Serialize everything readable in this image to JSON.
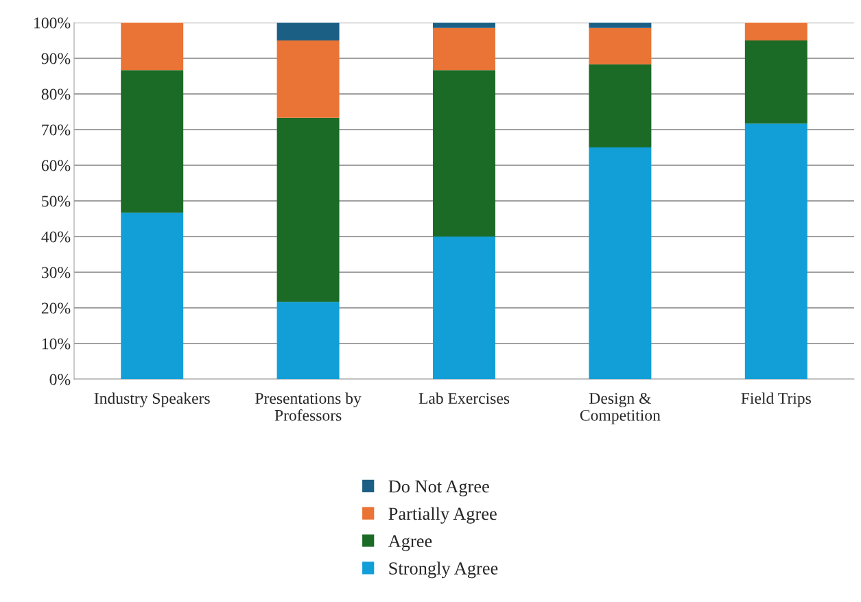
{
  "chart_data": {
    "type": "bar",
    "stacked": true,
    "categories": [
      "Industry Speakers",
      "Presentations by\nProfessors",
      "Lab Exercises",
      "Design &\nCompetition",
      "Field Trips"
    ],
    "series": [
      {
        "name": "Strongly Agree",
        "color": "#129fd8",
        "values": [
          46.7,
          21.7,
          40,
          65,
          71.7
        ]
      },
      {
        "name": "Agree",
        "color": "#1b6b27",
        "values": [
          40,
          51.6,
          46.7,
          23.3,
          23.3
        ]
      },
      {
        "name": "Partially Agree",
        "color": "#ea7435",
        "values": [
          13.3,
          21.7,
          11.8,
          10.2,
          5
        ]
      },
      {
        "name": "Do Not Agree",
        "color": "#1b5f85",
        "values": [
          null,
          5,
          1.5,
          1.5,
          null
        ]
      }
    ],
    "ylim": [
      0,
      100
    ],
    "yticks": [
      {
        "value": 0,
        "label": "0%"
      },
      {
        "value": 10,
        "label": "10%"
      },
      {
        "value": 20,
        "label": "20%"
      },
      {
        "value": 30,
        "label": "30%"
      },
      {
        "value": 40,
        "label": "40%"
      },
      {
        "value": 50,
        "label": "50%"
      },
      {
        "value": 60,
        "label": "60%"
      },
      {
        "value": 70,
        "label": "70%"
      },
      {
        "value": 80,
        "label": "80%"
      },
      {
        "value": 90,
        "label": "90%"
      },
      {
        "value": 100,
        "label": "100%"
      }
    ],
    "grid": "y",
    "legend": "bottom"
  }
}
